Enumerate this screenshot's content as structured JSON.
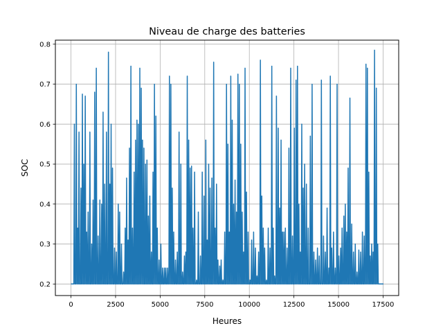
{
  "chart_data": {
    "type": "line",
    "title": "Niveau de charge des batteries",
    "xlabel": "Heures",
    "ylabel": "SOC",
    "xlim": [
      -875,
      18375
    ],
    "ylim": [
      0.1711,
      0.8101
    ],
    "xticks": [
      0,
      2500,
      5000,
      7500,
      10000,
      12500,
      15000,
      17500
    ],
    "xtick_labels": [
      "0",
      "2500",
      "5000",
      "7500",
      "10000",
      "12500",
      "15000",
      "17500"
    ],
    "yticks": [
      0.2,
      0.3,
      0.4,
      0.5,
      0.6,
      0.7,
      0.8
    ],
    "ytick_labels": [
      "0.2",
      "0.3",
      "0.4",
      "0.5",
      "0.6",
      "0.7",
      "0.8"
    ],
    "grid": true,
    "line_color": "#1f77b4",
    "series": [
      {
        "name": "",
        "x_start": 0,
        "x_end": 17520,
        "baseline": 0.2,
        "peaks": [
          [
            190,
            0.6
          ],
          [
            300,
            0.7
          ],
          [
            380,
            0.34
          ],
          [
            450,
            0.58
          ],
          [
            560,
            0.44
          ],
          [
            640,
            0.675
          ],
          [
            720,
            0.5
          ],
          [
            800,
            0.67
          ],
          [
            880,
            0.33
          ],
          [
            960,
            0.38
          ],
          [
            1060,
            0.58
          ],
          [
            1160,
            0.3
          ],
          [
            1240,
            0.41
          ],
          [
            1330,
            0.68
          ],
          [
            1420,
            0.74
          ],
          [
            1520,
            0.32
          ],
          [
            1620,
            0.41
          ],
          [
            1720,
            0.4
          ],
          [
            1800,
            0.63
          ],
          [
            1890,
            0.45
          ],
          [
            1990,
            0.58
          ],
          [
            2100,
            0.78
          ],
          [
            2180,
            0.45
          ],
          [
            2250,
            0.6
          ],
          [
            2330,
            0.49
          ],
          [
            2440,
            0.29
          ],
          [
            2540,
            0.28
          ],
          [
            2650,
            0.4
          ],
          [
            2730,
            0.38
          ],
          [
            2830,
            0.3
          ],
          [
            2950,
            0.23
          ],
          [
            3040,
            0.34
          ],
          [
            3120,
            0.465
          ],
          [
            3200,
            0.31
          ],
          [
            3280,
            0.54
          ],
          [
            3360,
            0.745
          ],
          [
            3450,
            0.34
          ],
          [
            3540,
            0.48
          ],
          [
            3620,
            0.56
          ],
          [
            3700,
            0.61
          ],
          [
            3780,
            0.6
          ],
          [
            3860,
            0.74
          ],
          [
            3940,
            0.69
          ],
          [
            4010,
            0.56
          ],
          [
            4090,
            0.54
          ],
          [
            4180,
            0.5
          ],
          [
            4260,
            0.51
          ],
          [
            4340,
            0.37
          ],
          [
            4420,
            0.42
          ],
          [
            4510,
            0.28
          ],
          [
            4600,
            0.48
          ],
          [
            4680,
            0.7
          ],
          [
            4760,
            0.62
          ],
          [
            4840,
            0.34
          ],
          [
            4940,
            0.26
          ],
          [
            5040,
            0.3
          ],
          [
            5140,
            0.24
          ],
          [
            5240,
            0.24
          ],
          [
            5320,
            0.24
          ],
          [
            5420,
            0.24
          ],
          [
            5520,
            0.72
          ],
          [
            5600,
            0.7
          ],
          [
            5680,
            0.44
          ],
          [
            5760,
            0.33
          ],
          [
            5860,
            0.26
          ],
          [
            5960,
            0.28
          ],
          [
            6060,
            0.58
          ],
          [
            6160,
            0.5
          ],
          [
            6260,
            0.23
          ],
          [
            6360,
            0.27
          ],
          [
            6440,
            0.28
          ],
          [
            6520,
            0.72
          ],
          [
            6600,
            0.56
          ],
          [
            6680,
            0.49
          ],
          [
            6760,
            0.495
          ],
          [
            6840,
            0.34
          ],
          [
            6930,
            0.48
          ],
          [
            7040,
            0.21
          ],
          [
            7140,
            0.38
          ],
          [
            7260,
            0.27
          ],
          [
            7360,
            0.48
          ],
          [
            7460,
            0.42
          ],
          [
            7560,
            0.56
          ],
          [
            7640,
            0.31
          ],
          [
            7720,
            0.5
          ],
          [
            7800,
            0.44
          ],
          [
            7900,
            0.465
          ],
          [
            8000,
            0.755
          ],
          [
            8080,
            0.34
          ],
          [
            8160,
            0.45
          ],
          [
            8240,
            0.26
          ],
          [
            8340,
            0.245
          ],
          [
            8420,
            0.26
          ],
          [
            8520,
            0.21
          ],
          [
            8620,
            0.33
          ],
          [
            8720,
            0.7
          ],
          [
            8800,
            0.55
          ],
          [
            8880,
            0.33
          ],
          [
            8960,
            0.72
          ],
          [
            9040,
            0.61
          ],
          [
            9120,
            0.4
          ],
          [
            9200,
            0.46
          ],
          [
            9280,
            0.38
          ],
          [
            9360,
            0.725
          ],
          [
            9440,
            0.7
          ],
          [
            9520,
            0.55
          ],
          [
            9600,
            0.38
          ],
          [
            9680,
            0.28
          ],
          [
            9760,
            0.74
          ],
          [
            9840,
            0.43
          ],
          [
            9930,
            0.33
          ],
          [
            10040,
            0.21
          ],
          [
            10130,
            0.31
          ],
          [
            10240,
            0.33
          ],
          [
            10340,
            0.29
          ],
          [
            10430,
            0.22
          ],
          [
            10520,
            0.28
          ],
          [
            10620,
            0.76
          ],
          [
            10700,
            0.42
          ],
          [
            10780,
            0.34
          ],
          [
            10860,
            0.29
          ],
          [
            10960,
            0.21
          ],
          [
            11060,
            0.34
          ],
          [
            11160,
            0.29
          ],
          [
            11260,
            0.745
          ],
          [
            11340,
            0.34
          ],
          [
            11420,
            0.22
          ],
          [
            11520,
            0.67
          ],
          [
            11620,
            0.59
          ],
          [
            11700,
            0.39
          ],
          [
            11780,
            0.56
          ],
          [
            11860,
            0.33
          ],
          [
            11940,
            0.33
          ],
          [
            12020,
            0.34
          ],
          [
            12120,
            0.29
          ],
          [
            12220,
            0.54
          ],
          [
            12320,
            0.74
          ],
          [
            12420,
            0.32
          ],
          [
            12520,
            0.59
          ],
          [
            12620,
            0.71
          ],
          [
            12700,
            0.745
          ],
          [
            12780,
            0.4
          ],
          [
            12860,
            0.28
          ],
          [
            12940,
            0.6
          ],
          [
            13020,
            0.44
          ],
          [
            13100,
            0.5
          ],
          [
            13200,
            0.45
          ],
          [
            13300,
            0.34
          ],
          [
            13420,
            0.57
          ],
          [
            13520,
            0.7
          ],
          [
            13620,
            0.28
          ],
          [
            13720,
            0.26
          ],
          [
            13820,
            0.29
          ],
          [
            13920,
            0.27
          ],
          [
            14040,
            0.71
          ],
          [
            14160,
            0.32
          ],
          [
            14260,
            0.28
          ],
          [
            14360,
            0.39
          ],
          [
            14460,
            0.24
          ],
          [
            14540,
            0.72
          ],
          [
            14620,
            0.29
          ],
          [
            14720,
            0.33
          ],
          [
            14820,
            0.24
          ],
          [
            14920,
            0.7
          ],
          [
            15020,
            0.27
          ],
          [
            15120,
            0.29
          ],
          [
            15200,
            0.34
          ],
          [
            15300,
            0.37
          ],
          [
            15380,
            0.4
          ],
          [
            15460,
            0.33
          ],
          [
            15540,
            0.49
          ],
          [
            15640,
            0.665
          ],
          [
            15740,
            0.35
          ],
          [
            15840,
            0.28
          ],
          [
            15940,
            0.3
          ],
          [
            16040,
            0.23
          ],
          [
            16140,
            0.285
          ],
          [
            16240,
            0.28
          ],
          [
            16340,
            0.33
          ],
          [
            16440,
            0.32
          ],
          [
            16540,
            0.75
          ],
          [
            16620,
            0.74
          ],
          [
            16700,
            0.48
          ],
          [
            16780,
            0.27
          ],
          [
            16860,
            0.3
          ],
          [
            16940,
            0.28
          ],
          [
            17020,
            0.785
          ],
          [
            17120,
            0.69
          ],
          [
            17200,
            0.3
          ]
        ]
      }
    ]
  }
}
